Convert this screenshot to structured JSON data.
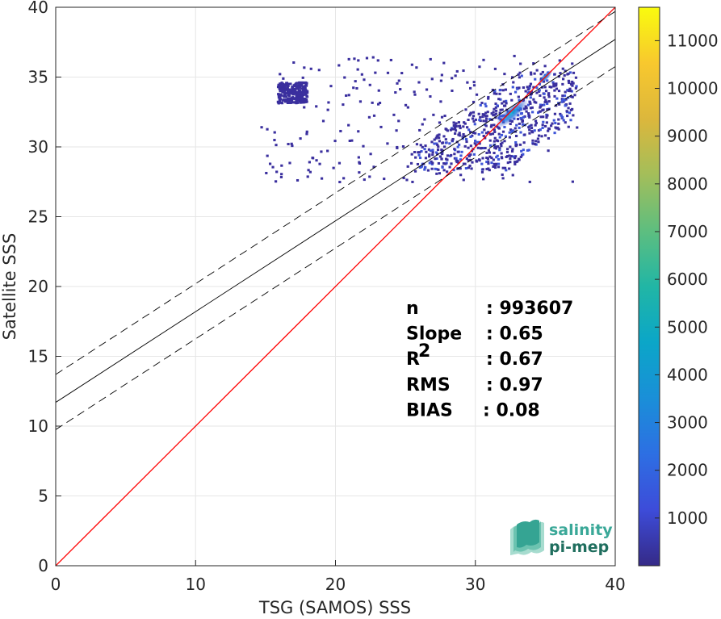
{
  "chart_data": {
    "type": "heatmap",
    "xlabel": "TSG (SAMOS) SSS",
    "ylabel": "Satellite SSS",
    "xlim": [
      0,
      40
    ],
    "ylim": [
      0,
      40
    ],
    "x_ticks": [
      "0",
      "10",
      "20",
      "30",
      "40"
    ],
    "y_ticks": [
      "0",
      "5",
      "10",
      "15",
      "20",
      "25",
      "30",
      "35",
      "40"
    ],
    "grid": true,
    "colormap": "parula",
    "colorbar": {
      "range": [
        0,
        11700
      ],
      "ticks": [
        "1000",
        "2000",
        "3000",
        "4000",
        "5000",
        "6000",
        "7000",
        "8000",
        "9000",
        "10000",
        "11000"
      ]
    },
    "lines": [
      {
        "role": "1:1",
        "color": "#ff0000",
        "style": "solid",
        "intercept": 0,
        "slope": 1
      },
      {
        "role": "fit",
        "color": "#000000",
        "style": "solid",
        "intercept": 11.7,
        "slope": 0.65
      },
      {
        "role": "fit+rms",
        "color": "#000000",
        "style": "dashed",
        "intercept": 13.7,
        "slope": 0.65
      },
      {
        "role": "fit-rms",
        "color": "#000000",
        "style": "dashed",
        "intercept": 9.75,
        "slope": 0.65
      }
    ],
    "stats": [
      {
        "label": "n",
        "sup": "",
        "value": ": 993607"
      },
      {
        "label": "Slope",
        "sup": "",
        "value": ": 0.65"
      },
      {
        "label": "R",
        "sup": "2",
        "value": ": 0.67"
      },
      {
        "label": "RMS",
        "sup": "",
        "value": ": 0.97"
      },
      {
        "label": "BIAS",
        "sup": "",
        "value": ": 0.08"
      }
    ],
    "density_regions": [
      {
        "x": [
          25.6,
          37.2
        ],
        "y": [
          28.4,
          35.5
        ],
        "density": "high"
      },
      {
        "x": [
          14.5,
          37.2
        ],
        "y": [
          27.5,
          36.6
        ],
        "density": "low"
      },
      {
        "x": [
          15.8,
          17.9
        ],
        "y": [
          33.2,
          34.7
        ],
        "density": "low"
      }
    ]
  },
  "logo": {
    "line1": "salinity",
    "line2": "pi-mep",
    "colors": [
      "#3aa898",
      "#1f6e5e"
    ]
  }
}
